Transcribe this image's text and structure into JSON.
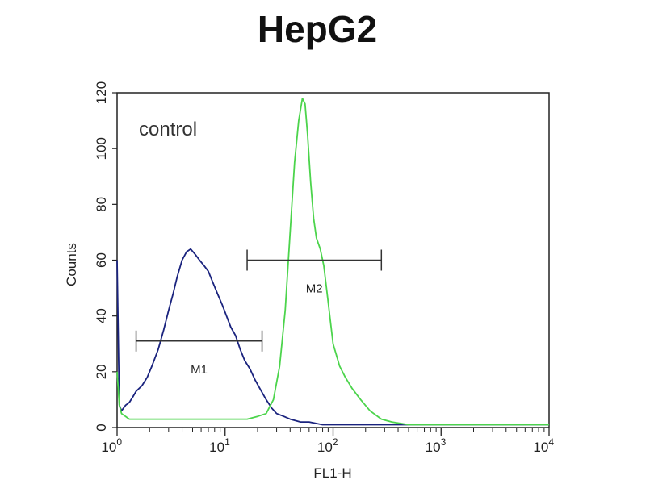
{
  "chart_data": {
    "type": "line",
    "title": "HepG2",
    "xlabel": "FL1-H",
    "ylabel": "Counts",
    "x_scale": "log",
    "xlim": [
      1,
      10000
    ],
    "ylim": [
      0,
      120
    ],
    "x_ticks": [
      1,
      10,
      100,
      1000,
      10000
    ],
    "x_tick_labels": [
      {
        "base": "10",
        "exp": "0"
      },
      {
        "base": "10",
        "exp": "1"
      },
      {
        "base": "10",
        "exp": "2"
      },
      {
        "base": "10",
        "exp": "3"
      },
      {
        "base": "10",
        "exp": "4"
      }
    ],
    "y_ticks": [
      0,
      20,
      40,
      60,
      80,
      100,
      120
    ],
    "y_tick_labels": [
      "0",
      "20",
      "40",
      "60",
      "80",
      "100",
      "120"
    ],
    "annotation": "control",
    "series": [
      {
        "color": "#1a237e",
        "x": [
          1.0,
          1.05,
          1.1,
          1.2,
          1.3,
          1.4,
          1.5,
          1.7,
          1.9,
          2.1,
          2.4,
          2.7,
          3.0,
          3.3,
          3.6,
          4.0,
          4.4,
          4.8,
          5.3,
          5.8,
          6.4,
          7.0,
          7.7,
          8.5,
          9.4,
          10.3,
          11.3,
          12.5,
          13.8,
          15.2,
          17.0,
          19.0,
          21.0,
          24.0,
          27.0,
          30.0,
          35.0,
          40.0,
          50.0,
          60.0,
          80.0,
          100.0,
          150.0,
          200.0,
          400.0,
          1000.0,
          10000.0
        ],
        "y": [
          60,
          8,
          6,
          8,
          9,
          11,
          13,
          15,
          18,
          22,
          28,
          35,
          42,
          48,
          54,
          60,
          63,
          64,
          62,
          60,
          58,
          56,
          52,
          48,
          44,
          40,
          36,
          33,
          28,
          24,
          21,
          17,
          14,
          10,
          7,
          5,
          4,
          3,
          2,
          2,
          1,
          1,
          1,
          1,
          1,
          1,
          1
        ]
      },
      {
        "color": "#4cd44c",
        "x": [
          1.0,
          1.05,
          1.1,
          1.3,
          1.6,
          2.0,
          3.0,
          5.0,
          8.0,
          12.0,
          16.0,
          20.0,
          24.0,
          28.0,
          32.0,
          36.0,
          40.0,
          44.0,
          48.0,
          52.0,
          55.0,
          58.0,
          62.0,
          66.0,
          70.0,
          76.0,
          82.0,
          90.0,
          100.0,
          115.0,
          130.0,
          150.0,
          180.0,
          220.0,
          280.0,
          350.0,
          500.0,
          1000.0,
          10000.0
        ],
        "y": [
          20,
          8,
          5,
          3,
          3,
          3,
          3,
          3,
          3,
          3,
          3,
          4,
          5,
          10,
          22,
          42,
          70,
          95,
          110,
          118,
          116,
          105,
          88,
          75,
          68,
          64,
          58,
          45,
          30,
          22,
          18,
          14,
          10,
          6,
          3,
          2,
          1,
          1,
          1
        ]
      }
    ],
    "markers": [
      {
        "label": "M1",
        "x_start": 1.5,
        "x_end": 22,
        "y": 31
      },
      {
        "label": "M2",
        "x_start": 16,
        "x_end": 280,
        "y": 60
      }
    ]
  }
}
